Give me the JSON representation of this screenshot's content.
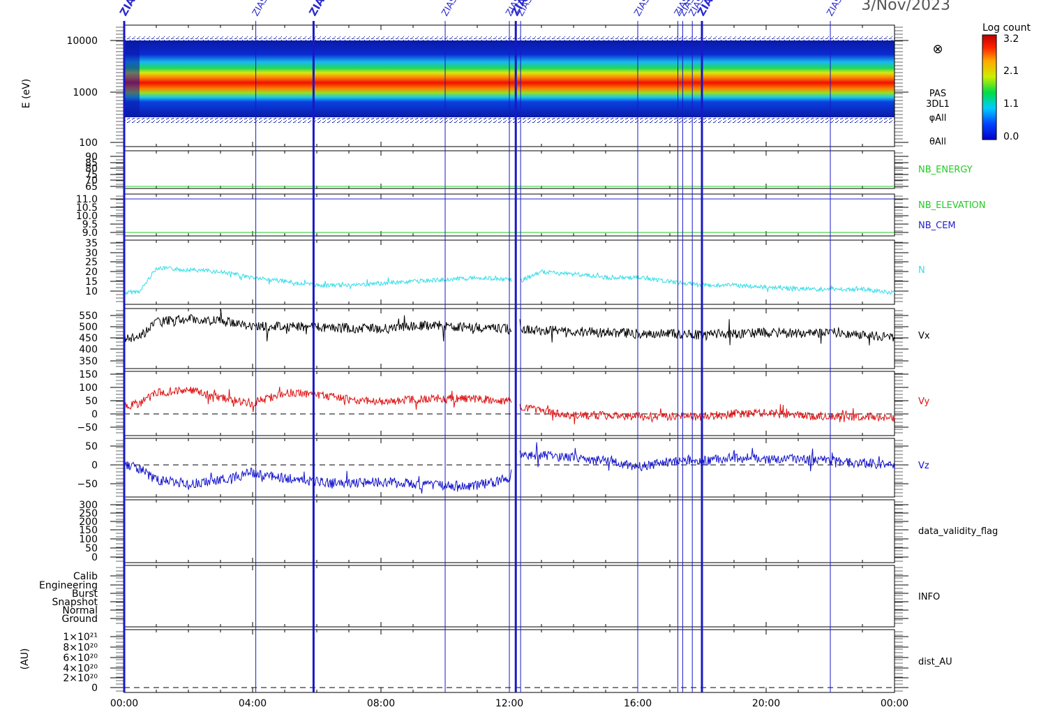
{
  "date": "3/Nov/2023",
  "colorbar": {
    "title": "Log count",
    "ticks": [
      "3.2",
      "2.1",
      "1.1",
      "0.0"
    ]
  },
  "spectrogram": {
    "ylabel": "E (eV)",
    "ticks": [
      "10000",
      "1000",
      "100"
    ],
    "labels": [
      "PAS",
      "3DL1",
      "φAll",
      "θAll"
    ],
    "symbol": "⊗"
  },
  "panels": {
    "nb_energy": {
      "ticks": [
        "90",
        "85",
        "80",
        "75",
        "70",
        "65"
      ],
      "label": "NB_ENERGY",
      "color": "#22cc22"
    },
    "nb_elev": {
      "ticks": [
        "11.0",
        "10.5",
        "10.0",
        "9.5",
        "9.0"
      ],
      "labels": [
        "NB_ELEVATION",
        "NB_CEM"
      ],
      "colors": [
        "#22cc22",
        "#2222cc"
      ]
    },
    "n": {
      "ticks": [
        "35",
        "30",
        "25",
        "20",
        "15",
        "10"
      ],
      "label": "N",
      "color": "#33dde8"
    },
    "vx": {
      "ticks": [
        "550",
        "500",
        "450",
        "400",
        "350"
      ],
      "label": "Vx",
      "color": "#000000"
    },
    "vy": {
      "ticks": [
        "150",
        "100",
        "50",
        "0",
        "−50"
      ],
      "label": "Vy",
      "color": "#dd1111"
    },
    "vz": {
      "ticks": [
        "50",
        "0",
        "−50"
      ],
      "label": "Vz",
      "color": "#1111cc"
    },
    "flag": {
      "ticks": [
        "300",
        "250",
        "200",
        "150",
        "100",
        "50",
        "0"
      ],
      "label": "data_validity_flag"
    },
    "info": {
      "ticks": [
        "Calib",
        "Engineering",
        "Burst",
        "Snapshot",
        "Normal",
        "Ground"
      ],
      "label": "INFO"
    },
    "dist": {
      "ylabel": "(AU)",
      "ticks": [
        "1×10²¹",
        "8×10²⁰",
        "6×10²⁰",
        "4×10²⁰",
        "2×10²⁰",
        "0"
      ],
      "label": "dist_AU"
    }
  },
  "xaxis": {
    "ticks": [
      "00:00",
      "04:00",
      "08:00",
      "12:00",
      "16:00",
      "20:00",
      "00:00"
    ]
  },
  "markers": {
    "label": "ZIAS"
  },
  "chart_data": {
    "type": "line",
    "title": "3/Nov/2023",
    "x_range": [
      "00:00",
      "24:00"
    ],
    "series": [
      {
        "name": "N",
        "x": [
          0,
          0.5,
          1,
          2,
          3,
          4,
          5,
          6,
          7,
          8,
          9,
          10,
          11,
          12,
          12.3,
          13,
          14,
          15,
          16,
          17,
          18,
          19,
          20,
          21,
          22,
          23,
          24
        ],
        "values": [
          9,
          10,
          22,
          21,
          20,
          17,
          15,
          13,
          13,
          14,
          15,
          16,
          17,
          16,
          15,
          20,
          19,
          17,
          17,
          15,
          13,
          13,
          12,
          11,
          11,
          11,
          9
        ]
      },
      {
        "name": "Vx",
        "x": [
          0,
          0.5,
          1,
          2,
          3,
          4,
          5,
          6,
          7,
          8,
          9,
          10,
          11,
          12,
          12.3,
          13,
          14,
          15,
          16,
          17,
          18,
          19,
          20,
          21,
          22,
          23,
          24
        ],
        "values": [
          450,
          455,
          520,
          535,
          525,
          505,
          500,
          500,
          495,
          490,
          505,
          505,
          495,
          490,
          490,
          485,
          480,
          475,
          470,
          470,
          465,
          470,
          475,
          470,
          475,
          465,
          455
        ]
      },
      {
        "name": "Vy",
        "x": [
          0,
          0.5,
          1,
          2,
          3,
          4,
          5,
          6,
          7,
          8,
          9,
          10,
          11,
          12,
          12.3,
          13,
          14,
          15,
          16,
          17,
          18,
          19,
          20,
          21,
          22,
          23,
          24
        ],
        "values": [
          30,
          40,
          80,
          90,
          60,
          40,
          80,
          75,
          55,
          45,
          55,
          60,
          55,
          50,
          30,
          10,
          -5,
          -5,
          -10,
          -10,
          -10,
          0,
          5,
          -5,
          -10,
          -10,
          -15
        ]
      },
      {
        "name": "Vz",
        "x": [
          0,
          0.5,
          1,
          2,
          3,
          4,
          5,
          6,
          7,
          8,
          9,
          10,
          11,
          12,
          12.3,
          13,
          14,
          15,
          16,
          17,
          18,
          19,
          20,
          21,
          22,
          23,
          24
        ],
        "values": [
          0,
          -10,
          -40,
          -50,
          -40,
          -20,
          -35,
          -45,
          -50,
          -45,
          -50,
          -55,
          -55,
          -35,
          30,
          25,
          20,
          10,
          -5,
          10,
          10,
          20,
          15,
          15,
          10,
          5,
          0
        ]
      }
    ],
    "spectrogram": {
      "quantity": "E (eV)",
      "scale": "log",
      "ylim": [
        100,
        10000
      ],
      "peak_energy_eV": {
        "x": [
          0,
          1,
          6,
          12,
          18,
          24
        ],
        "values": [
          1200,
          1400,
          1200,
          1150,
          1050,
          1050
        ]
      },
      "colorbar_range": [
        0.0,
        3.2
      ],
      "colorbar_title": "Log count"
    },
    "constants": [
      {
        "name": "NB_ENERGY",
        "value": 66
      },
      {
        "name": "NB_ELEVATION",
        "value": 9.0
      },
      {
        "name": "NB_CEM",
        "value": 11.0
      }
    ],
    "zias_markers_hours": [
      0,
      4.1,
      5.9,
      10.0,
      12.0,
      12.2,
      12.35,
      16.0,
      17.25,
      17.4,
      17.7,
      18.0,
      22.0
    ]
  }
}
